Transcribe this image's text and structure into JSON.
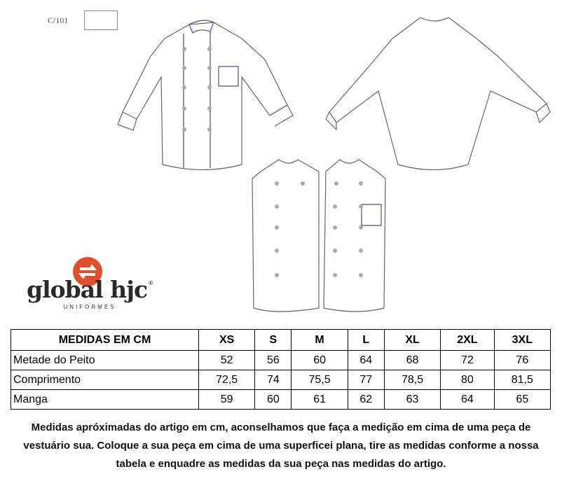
{
  "drawing": {
    "code": "C/101"
  },
  "logo": {
    "name": "global hjc",
    "subtitle": "UNIFORMES",
    "mark": "®",
    "color": "#e04e2b"
  },
  "table": {
    "header": [
      "MEDIDAS EM CM",
      "XS",
      "S",
      "M",
      "L",
      "XL",
      "2XL",
      "3XL"
    ],
    "rows": [
      {
        "label": "Metade do Peito",
        "values": [
          "52",
          "56",
          "60",
          "64",
          "68",
          "72",
          "76"
        ]
      },
      {
        "label": "Comprimento",
        "values": [
          "72,5",
          "74",
          "75,5",
          "77",
          "78,5",
          "80",
          "81,5"
        ]
      },
      {
        "label": "Manga",
        "values": [
          "59",
          "60",
          "61",
          "62",
          "63",
          "64",
          "65"
        ]
      }
    ]
  },
  "note": "Medidas apróximadas do artigo em cm, aconselhamos que faça a medição em cima de uma peça de vestuário sua. Coloque a sua peça em cima de uma superficei plana, tire as medidas conforme a nossa tabela e enquadre as medidas da sua peça nas medidas do artigo."
}
